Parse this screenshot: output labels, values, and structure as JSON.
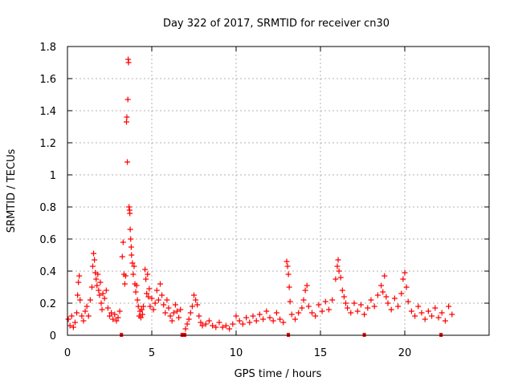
{
  "chart_data": {
    "type": "scatter",
    "title": "Day 322 of 2017, SRMTID for receiver cn30",
    "xlabel": "GPS time / hours",
    "ylabel": "SRMTID / TECUs",
    "xlim": [
      0,
      25
    ],
    "ylim": [
      0,
      1.8
    ],
    "xticks": [
      0,
      5,
      10,
      15,
      20
    ],
    "xtick_labels": [
      "0",
      "5",
      "10",
      "15",
      "20"
    ],
    "yticks": [
      0,
      0.2,
      0.4,
      0.6,
      0.8,
      1.0,
      1.2,
      1.4,
      1.6,
      1.8
    ],
    "ytick_labels": [
      "0",
      "0.2",
      "0.4",
      "0.6",
      "0.8",
      "1",
      "1.2",
      "1.4",
      "1.6",
      "1.8"
    ],
    "grid": true,
    "marker": "+",
    "series_color": "#ff0000",
    "series": [
      {
        "name": "SRMTID",
        "points": [
          [
            0.05,
            0.1
          ],
          [
            0.15,
            0.06
          ],
          [
            0.25,
            0.12
          ],
          [
            0.35,
            0.05
          ],
          [
            0.45,
            0.08
          ],
          [
            0.55,
            0.14
          ],
          [
            0.6,
            0.25
          ],
          [
            0.65,
            0.33
          ],
          [
            0.7,
            0.37
          ],
          [
            0.75,
            0.22
          ],
          [
            0.85,
            0.12
          ],
          [
            0.95,
            0.09
          ],
          [
            1.05,
            0.15
          ],
          [
            1.15,
            0.18
          ],
          [
            1.25,
            0.12
          ],
          [
            1.35,
            0.22
          ],
          [
            1.45,
            0.3
          ],
          [
            1.5,
            0.43
          ],
          [
            1.55,
            0.51
          ],
          [
            1.6,
            0.47
          ],
          [
            1.65,
            0.39
          ],
          [
            1.7,
            0.35
          ],
          [
            1.75,
            0.31
          ],
          [
            1.8,
            0.38
          ],
          [
            1.85,
            0.28
          ],
          [
            1.9,
            0.25
          ],
          [
            1.95,
            0.33
          ],
          [
            2.0,
            0.2
          ],
          [
            2.05,
            0.16
          ],
          [
            2.1,
            0.26
          ],
          [
            2.2,
            0.23
          ],
          [
            2.3,
            0.28
          ],
          [
            2.4,
            0.17
          ],
          [
            2.5,
            0.12
          ],
          [
            2.6,
            0.14
          ],
          [
            2.7,
            0.1
          ],
          [
            2.8,
            0.13
          ],
          [
            2.9,
            0.09
          ],
          [
            3.0,
            0.11
          ],
          [
            3.1,
            0.15
          ],
          [
            3.25,
            0.49
          ],
          [
            3.3,
            0.58
          ],
          [
            3.35,
            0.38
          ],
          [
            3.4,
            0.32
          ],
          [
            3.45,
            0.37
          ],
          [
            3.5,
            1.33
          ],
          [
            3.52,
            1.36
          ],
          [
            3.55,
            1.08
          ],
          [
            3.58,
            1.47
          ],
          [
            3.6,
            1.72
          ],
          [
            3.62,
            1.7
          ],
          [
            3.65,
            0.8
          ],
          [
            3.68,
            0.78
          ],
          [
            3.7,
            0.76
          ],
          [
            3.72,
            0.66
          ],
          [
            3.75,
            0.6
          ],
          [
            3.78,
            0.55
          ],
          [
            3.8,
            0.5
          ],
          [
            3.85,
            0.45
          ],
          [
            3.9,
            0.38
          ],
          [
            3.95,
            0.43
          ],
          [
            4.0,
            0.32
          ],
          [
            4.05,
            0.27
          ],
          [
            4.1,
            0.31
          ],
          [
            4.15,
            0.22
          ],
          [
            4.2,
            0.18
          ],
          [
            4.25,
            0.12
          ],
          [
            4.3,
            0.15
          ],
          [
            4.35,
            0.11
          ],
          [
            4.4,
            0.16
          ],
          [
            4.45,
            0.13
          ],
          [
            4.5,
            0.18
          ],
          [
            4.6,
            0.41
          ],
          [
            4.65,
            0.35
          ],
          [
            4.7,
            0.26
          ],
          [
            4.75,
            0.38
          ],
          [
            4.8,
            0.24
          ],
          [
            4.85,
            0.29
          ],
          [
            4.9,
            0.18
          ],
          [
            5.0,
            0.23
          ],
          [
            5.1,
            0.16
          ],
          [
            5.2,
            0.2
          ],
          [
            5.3,
            0.28
          ],
          [
            5.4,
            0.22
          ],
          [
            5.5,
            0.32
          ],
          [
            5.6,
            0.25
          ],
          [
            5.7,
            0.19
          ],
          [
            5.8,
            0.14
          ],
          [
            5.9,
            0.22
          ],
          [
            6.0,
            0.17
          ],
          [
            6.1,
            0.12
          ],
          [
            6.2,
            0.09
          ],
          [
            6.3,
            0.14
          ],
          [
            6.4,
            0.19
          ],
          [
            6.5,
            0.15
          ],
          [
            6.6,
            0.11
          ],
          [
            6.7,
            0.16
          ],
          [
            7.0,
            0.04
          ],
          [
            7.1,
            0.07
          ],
          [
            7.2,
            0.1
          ],
          [
            7.3,
            0.14
          ],
          [
            7.4,
            0.18
          ],
          [
            7.5,
            0.25
          ],
          [
            7.6,
            0.22
          ],
          [
            7.7,
            0.19
          ],
          [
            7.8,
            0.12
          ],
          [
            7.9,
            0.08
          ],
          [
            8.0,
            0.06
          ],
          [
            8.2,
            0.07
          ],
          [
            8.4,
            0.09
          ],
          [
            8.6,
            0.06
          ],
          [
            8.8,
            0.05
          ],
          [
            9.0,
            0.08
          ],
          [
            9.2,
            0.05
          ],
          [
            9.4,
            0.06
          ],
          [
            9.6,
            0.04
          ],
          [
            9.8,
            0.07
          ],
          [
            10.0,
            0.12
          ],
          [
            10.2,
            0.09
          ],
          [
            10.4,
            0.07
          ],
          [
            10.6,
            0.11
          ],
          [
            10.8,
            0.08
          ],
          [
            11.0,
            0.12
          ],
          [
            11.2,
            0.09
          ],
          [
            11.4,
            0.13
          ],
          [
            11.6,
            0.1
          ],
          [
            11.8,
            0.15
          ],
          [
            12.0,
            0.11
          ],
          [
            12.2,
            0.09
          ],
          [
            12.4,
            0.14
          ],
          [
            12.6,
            0.1
          ],
          [
            12.8,
            0.08
          ],
          [
            13.0,
            0.46
          ],
          [
            13.05,
            0.43
          ],
          [
            13.1,
            0.38
          ],
          [
            13.15,
            0.3
          ],
          [
            13.2,
            0.21
          ],
          [
            13.3,
            0.13
          ],
          [
            13.5,
            0.1
          ],
          [
            13.7,
            0.14
          ],
          [
            13.9,
            0.17
          ],
          [
            14.0,
            0.22
          ],
          [
            14.1,
            0.28
          ],
          [
            14.2,
            0.31
          ],
          [
            14.3,
            0.18
          ],
          [
            14.5,
            0.14
          ],
          [
            14.7,
            0.12
          ],
          [
            14.9,
            0.19
          ],
          [
            15.1,
            0.15
          ],
          [
            15.3,
            0.21
          ],
          [
            15.5,
            0.16
          ],
          [
            15.7,
            0.22
          ],
          [
            15.9,
            0.35
          ],
          [
            16.0,
            0.43
          ],
          [
            16.05,
            0.47
          ],
          [
            16.1,
            0.4
          ],
          [
            16.2,
            0.36
          ],
          [
            16.3,
            0.28
          ],
          [
            16.4,
            0.24
          ],
          [
            16.5,
            0.2
          ],
          [
            16.6,
            0.17
          ],
          [
            16.8,
            0.14
          ],
          [
            17.0,
            0.2
          ],
          [
            17.2,
            0.15
          ],
          [
            17.4,
            0.19
          ],
          [
            17.6,
            0.13
          ],
          [
            17.8,
            0.17
          ],
          [
            18.0,
            0.22
          ],
          [
            18.2,
            0.18
          ],
          [
            18.4,
            0.25
          ],
          [
            18.6,
            0.31
          ],
          [
            18.7,
            0.27
          ],
          [
            18.8,
            0.37
          ],
          [
            18.9,
            0.24
          ],
          [
            19.0,
            0.2
          ],
          [
            19.2,
            0.16
          ],
          [
            19.4,
            0.23
          ],
          [
            19.6,
            0.18
          ],
          [
            19.8,
            0.26
          ],
          [
            19.9,
            0.35
          ],
          [
            20.0,
            0.39
          ],
          [
            20.1,
            0.3
          ],
          [
            20.2,
            0.21
          ],
          [
            20.4,
            0.15
          ],
          [
            20.6,
            0.12
          ],
          [
            20.8,
            0.18
          ],
          [
            21.0,
            0.14
          ],
          [
            21.2,
            0.1
          ],
          [
            21.4,
            0.15
          ],
          [
            21.6,
            0.12
          ],
          [
            21.8,
            0.17
          ],
          [
            22.0,
            0.11
          ],
          [
            22.2,
            0.14
          ],
          [
            22.4,
            0.09
          ],
          [
            22.6,
            0.18
          ],
          [
            22.8,
            0.13
          ]
        ]
      }
    ]
  }
}
